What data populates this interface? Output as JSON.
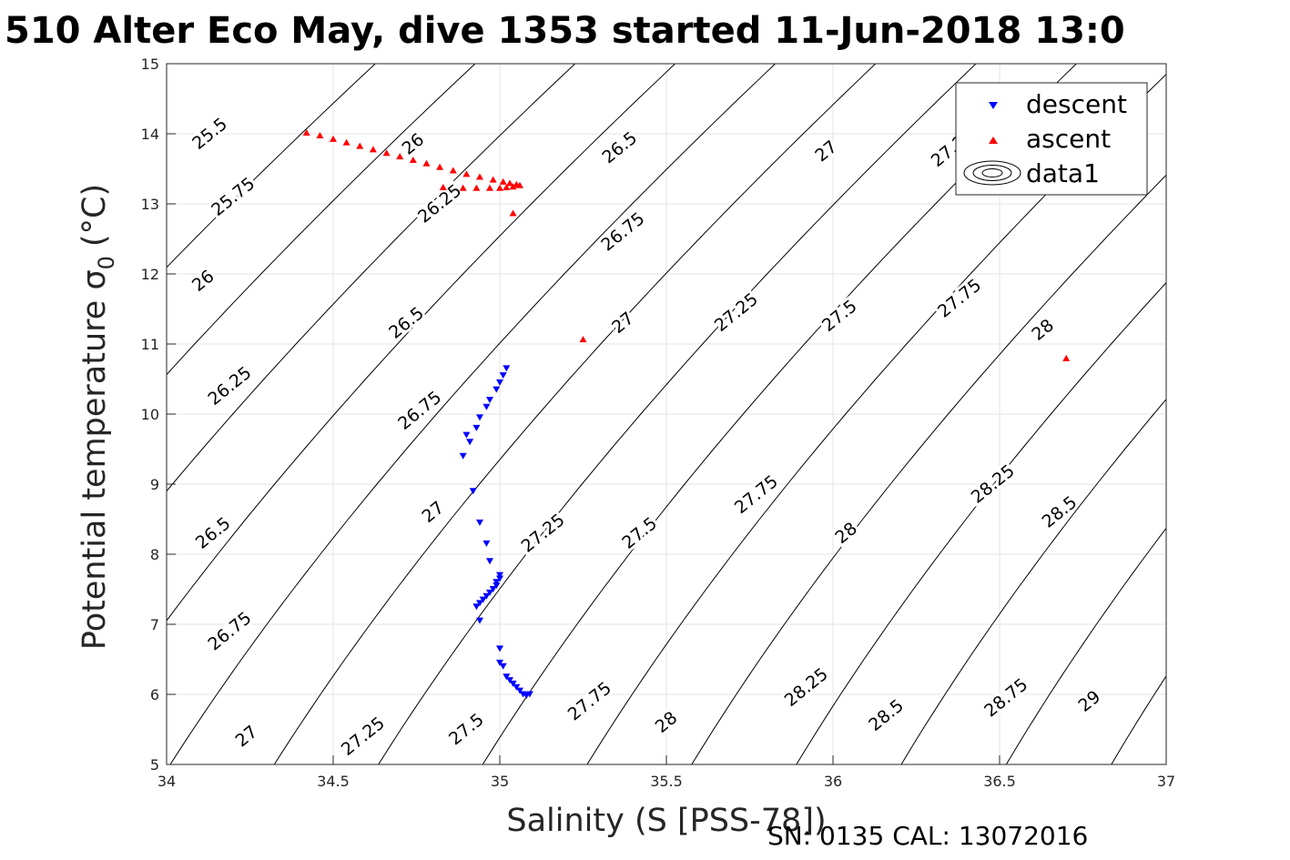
{
  "chart_data": {
    "type": "scatter",
    "title": "510 Alter Eco May, dive 1353 started 11-Jun-2018 13:0",
    "xlabel": "Salinity (S [PSS-78])",
    "ylabel": "Potential temperature σ",
    "ylabel_sub": "0",
    "ylabel_unit": "(°C)",
    "footer": "SN: 0135  CAL: 13072016",
    "xlim": [
      34,
      37
    ],
    "ylim": [
      5,
      15
    ],
    "xticks": [
      "34",
      "34.5",
      "35",
      "35.5",
      "36",
      "36.5",
      "37"
    ],
    "yticks": [
      "5",
      "6",
      "7",
      "8",
      "9",
      "10",
      "11",
      "12",
      "13",
      "14",
      "15"
    ],
    "grid": true,
    "legend_position": "top-right",
    "contours": {
      "description_levels": [
        25.5,
        25.75,
        26,
        26.25,
        26.5,
        26.75,
        27,
        27.25,
        27.5,
        27.75,
        28,
        28.25,
        28.5,
        28.75,
        29
      ],
      "labels": [
        {
          "text": "25.5",
          "s": 34.13,
          "t": 14.0
        },
        {
          "text": "25.75",
          "s": 34.2,
          "t": 13.1
        },
        {
          "text": "26",
          "s": 34.11,
          "t": 11.9
        },
        {
          "text": "26.25",
          "s": 34.19,
          "t": 10.4
        },
        {
          "text": "26.5",
          "s": 34.14,
          "t": 8.3
        },
        {
          "text": "26.75",
          "s": 34.19,
          "t": 6.9
        },
        {
          "text": "27",
          "s": 34.24,
          "t": 5.4
        },
        {
          "text": "27.25",
          "s": 34.59,
          "t": 5.4
        },
        {
          "text": "27.5",
          "s": 34.9,
          "t": 5.5
        },
        {
          "text": "27.75",
          "s": 35.27,
          "t": 5.9
        },
        {
          "text": "28",
          "s": 35.5,
          "t": 5.6
        },
        {
          "text": "28.25",
          "s": 35.92,
          "t": 6.1
        },
        {
          "text": "28.5",
          "s": 36.16,
          "t": 5.7
        },
        {
          "text": "28.75",
          "s": 36.52,
          "t": 5.95
        },
        {
          "text": "29",
          "s": 36.77,
          "t": 5.9
        },
        {
          "text": "26",
          "s": 34.74,
          "t": 13.85
        },
        {
          "text": "26.25",
          "s": 34.82,
          "t": 13.0
        },
        {
          "text": "26.5",
          "s": 34.72,
          "t": 11.3
        },
        {
          "text": "26.75",
          "s": 34.76,
          "t": 10.05
        },
        {
          "text": "27",
          "s": 34.8,
          "t": 8.6
        },
        {
          "text": "27.25",
          "s": 35.13,
          "t": 8.3
        },
        {
          "text": "27.5",
          "s": 35.42,
          "t": 8.3
        },
        {
          "text": "27.75",
          "s": 35.77,
          "t": 8.85
        },
        {
          "text": "28",
          "s": 36.04,
          "t": 8.3
        },
        {
          "text": "28.25",
          "s": 36.48,
          "t": 9.0
        },
        {
          "text": "28.5",
          "s": 36.68,
          "t": 8.6
        },
        {
          "text": "26.5",
          "s": 35.36,
          "t": 13.8
        },
        {
          "text": "26.75",
          "s": 35.37,
          "t": 12.6
        },
        {
          "text": "27",
          "s": 35.37,
          "t": 11.3
        },
        {
          "text": "27.25",
          "s": 35.71,
          "t": 11.45
        },
        {
          "text": "27.5",
          "s": 36.02,
          "t": 11.4
        },
        {
          "text": "27.75",
          "s": 36.38,
          "t": 11.65
        },
        {
          "text": "28",
          "s": 36.63,
          "t": 11.2
        },
        {
          "text": "27",
          "s": 35.98,
          "t": 13.75
        },
        {
          "text": "27.25",
          "s": 36.36,
          "t": 13.8
        }
      ]
    },
    "series": [
      {
        "name": "descent",
        "marker": "triangle-down",
        "color": "#0000ff",
        "points": [
          [
            35.02,
            10.65
          ],
          [
            35.01,
            10.55
          ],
          [
            35.0,
            10.45
          ],
          [
            34.99,
            10.35
          ],
          [
            34.97,
            10.2
          ],
          [
            34.96,
            10.1
          ],
          [
            34.94,
            9.95
          ],
          [
            34.93,
            9.8
          ],
          [
            34.9,
            9.7
          ],
          [
            34.91,
            9.6
          ],
          [
            34.89,
            9.4
          ],
          [
            34.92,
            8.9
          ],
          [
            34.94,
            8.45
          ],
          [
            34.96,
            8.15
          ],
          [
            34.97,
            7.9
          ],
          [
            35.0,
            7.7
          ],
          [
            35.0,
            7.65
          ],
          [
            34.99,
            7.6
          ],
          [
            34.99,
            7.55
          ],
          [
            34.98,
            7.5
          ],
          [
            34.97,
            7.45
          ],
          [
            34.96,
            7.4
          ],
          [
            34.95,
            7.35
          ],
          [
            34.94,
            7.3
          ],
          [
            34.93,
            7.25
          ],
          [
            34.94,
            7.05
          ],
          [
            35.0,
            6.65
          ],
          [
            35.0,
            6.45
          ],
          [
            35.01,
            6.4
          ],
          [
            35.02,
            6.25
          ],
          [
            35.03,
            6.2
          ],
          [
            35.04,
            6.15
          ],
          [
            35.05,
            6.1
          ],
          [
            35.06,
            6.05
          ],
          [
            35.07,
            6.0
          ],
          [
            35.08,
            5.98
          ],
          [
            35.09,
            6.0
          ]
        ]
      },
      {
        "name": "ascent",
        "marker": "triangle-up",
        "color": "#ff0000",
        "points": [
          [
            34.42,
            14.02
          ],
          [
            34.46,
            13.98
          ],
          [
            34.5,
            13.93
          ],
          [
            34.54,
            13.88
          ],
          [
            34.58,
            13.83
          ],
          [
            34.62,
            13.78
          ],
          [
            34.66,
            13.73
          ],
          [
            34.7,
            13.68
          ],
          [
            34.74,
            13.63
          ],
          [
            34.78,
            13.58
          ],
          [
            34.82,
            13.53
          ],
          [
            34.86,
            13.48
          ],
          [
            34.9,
            13.43
          ],
          [
            34.94,
            13.39
          ],
          [
            34.98,
            13.35
          ],
          [
            35.01,
            13.32
          ],
          [
            35.03,
            13.3
          ],
          [
            35.05,
            13.28
          ],
          [
            35.06,
            13.27
          ],
          [
            35.04,
            13.25
          ],
          [
            35.02,
            13.24
          ],
          [
            35.0,
            13.23
          ],
          [
            34.97,
            13.23
          ],
          [
            34.93,
            13.23
          ],
          [
            34.89,
            13.23
          ],
          [
            34.83,
            13.24
          ],
          [
            35.04,
            12.87
          ],
          [
            35.25,
            11.07
          ],
          [
            36.7,
            10.8
          ]
        ]
      },
      {
        "name": "data1",
        "marker": "contour",
        "color": "#000000",
        "points": []
      }
    ]
  }
}
